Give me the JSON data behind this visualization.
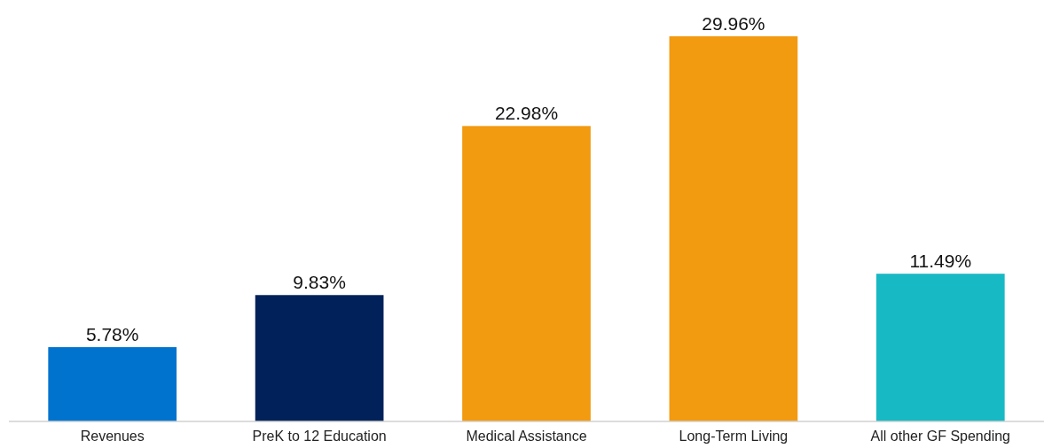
{
  "chart_data": {
    "type": "bar",
    "categories": [
      "Revenues",
      "PreK to 12 Education",
      "Medical Assistance",
      "Long-Term Living",
      "All other GF Spending"
    ],
    "values": [
      5.78,
      9.83,
      22.98,
      29.96,
      11.49
    ],
    "colors": [
      "#0073cf",
      "#002159",
      "#f29a10",
      "#f29a10",
      "#17b9c4"
    ],
    "value_labels": [
      "5.78%",
      "9.83%",
      "22.98%",
      "29.96%",
      "11.49%"
    ]
  }
}
